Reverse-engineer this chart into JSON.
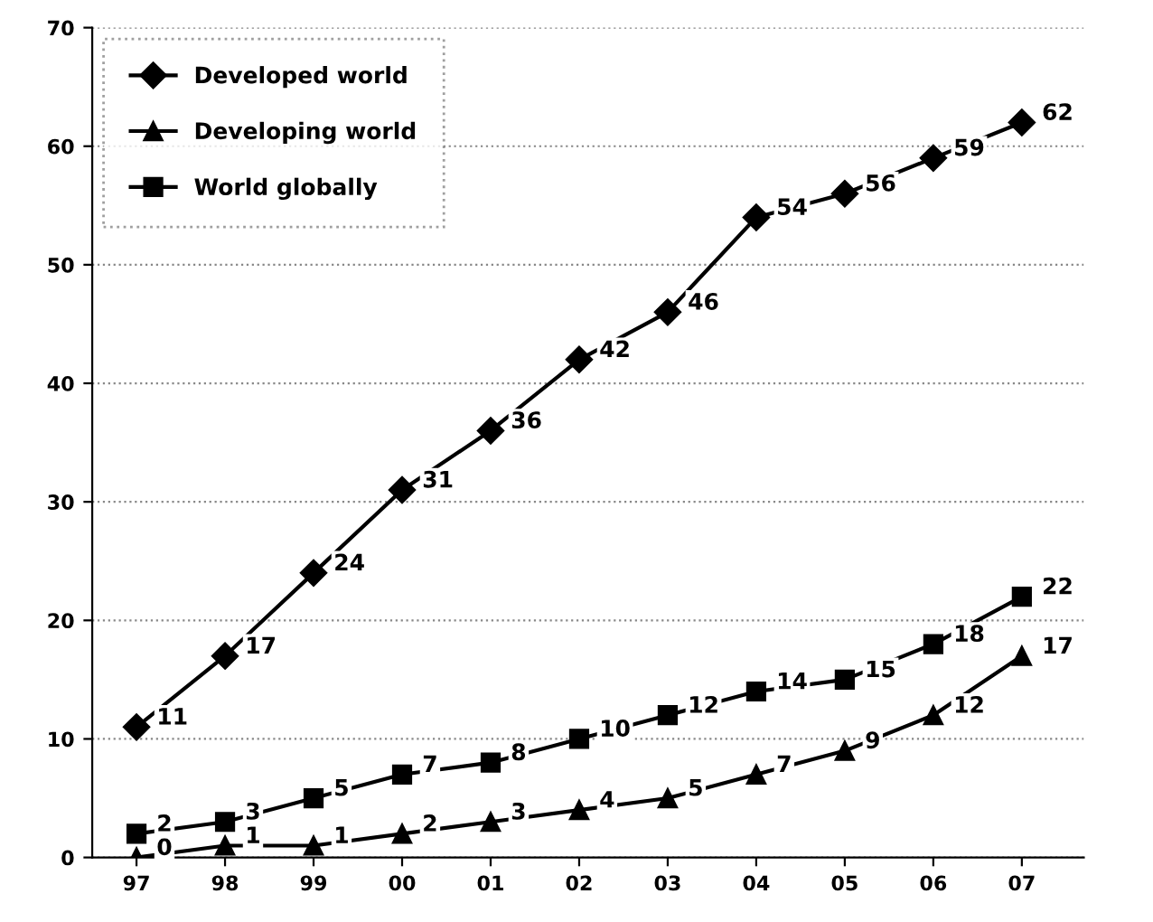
{
  "chart_data": {
    "type": "line",
    "categories": [
      "97",
      "98",
      "99",
      "00",
      "01",
      "02",
      "03",
      "04",
      "05",
      "06",
      "07"
    ],
    "series": [
      {
        "name": "Developed world",
        "color": "#000000",
        "marker": "diamond",
        "values": [
          11,
          17,
          24,
          31,
          36,
          42,
          46,
          54,
          56,
          59,
          62
        ]
      },
      {
        "name": "Developing world",
        "color": "#000000",
        "marker": "triangle",
        "values": [
          0,
          1,
          1,
          2,
          3,
          4,
          5,
          7,
          9,
          12,
          17
        ]
      },
      {
        "name": "World globally",
        "color": "#000000",
        "marker": "square",
        "values": [
          2,
          3,
          5,
          7,
          8,
          10,
          12,
          14,
          15,
          18,
          22
        ]
      }
    ],
    "ylim": [
      0,
      70
    ],
    "yticks": [
      0,
      10,
      20,
      30,
      40,
      50,
      60,
      70
    ],
    "grid": "y",
    "legend": "top left",
    "data_labels": true,
    "line_style": "solid"
  }
}
